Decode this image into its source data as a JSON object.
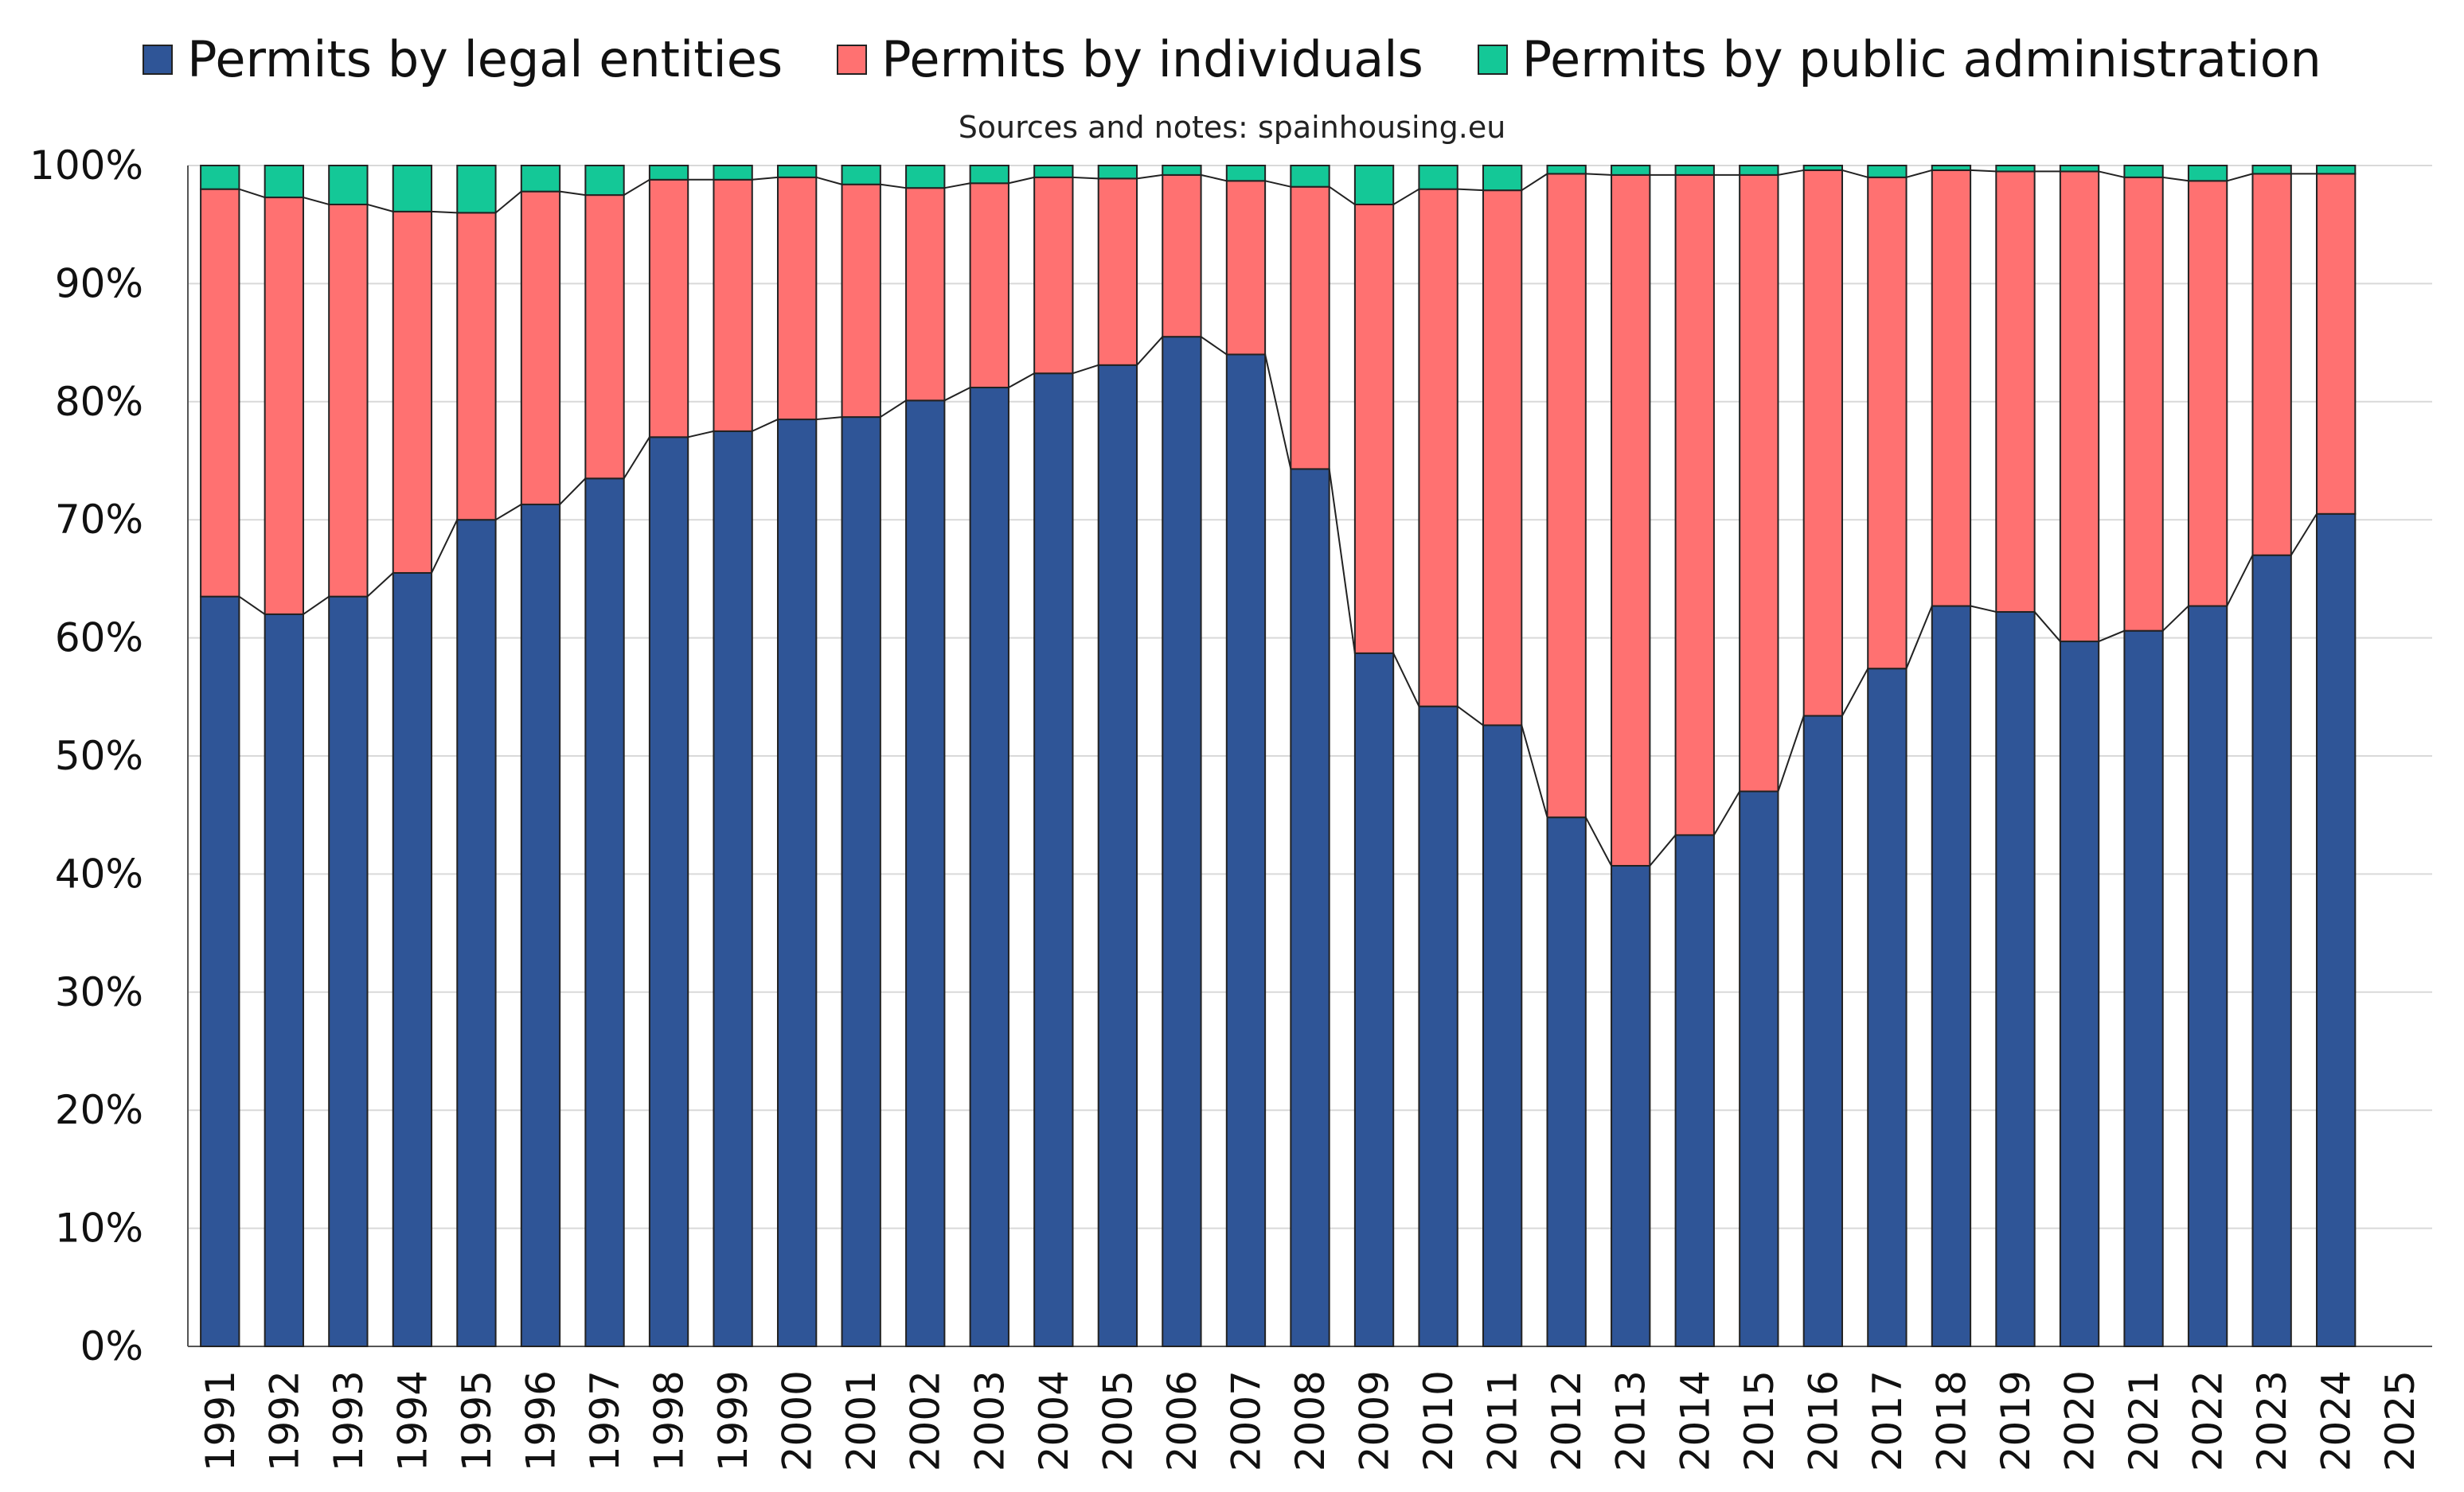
{
  "subtitle": "Sources and notes: spainhousing.eu",
  "legend": [
    {
      "label": "Permits by legal entities",
      "color": "#2F5597"
    },
    {
      "label": "Permits by individuals",
      "color": "#FF7171"
    },
    {
      "label": "Permits by public administration",
      "color": "#14C897"
    }
  ],
  "chart_data": {
    "type": "bar",
    "stacked": true,
    "categories": [
      "1991",
      "1992",
      "1993",
      "1994",
      "1995",
      "1996",
      "1997",
      "1998",
      "1999",
      "2000",
      "2001",
      "2002",
      "2003",
      "2004",
      "2005",
      "2006",
      "2007",
      "2008",
      "2009",
      "2010",
      "2011",
      "2012",
      "2013",
      "2014",
      "2015",
      "2016",
      "2017",
      "2018",
      "2019",
      "2020",
      "2021",
      "2022",
      "2023",
      "2024",
      "2025"
    ],
    "series": [
      {
        "name": "Permits by legal entities",
        "color": "#2F5597",
        "values": [
          63.5,
          62.0,
          63.5,
          65.5,
          70.0,
          71.3,
          73.5,
          77.0,
          77.5,
          78.5,
          78.7,
          80.1,
          81.2,
          82.4,
          83.1,
          85.5,
          84.0,
          74.3,
          58.7,
          54.2,
          52.6,
          44.8,
          40.7,
          43.3,
          47.0,
          53.4,
          57.4,
          62.7,
          62.2,
          59.7,
          60.6,
          62.7,
          67.0,
          70.5,
          null
        ]
      },
      {
        "name": "Permits by individuals",
        "color": "#FF7171",
        "values": [
          34.5,
          35.3,
          33.2,
          30.6,
          26.0,
          26.5,
          24.0,
          21.8,
          21.3,
          20.5,
          19.7,
          18.0,
          17.3,
          16.6,
          15.8,
          13.7,
          14.7,
          23.9,
          38.0,
          43.8,
          45.3,
          54.5,
          58.5,
          55.9,
          52.2,
          46.2,
          41.6,
          36.9,
          37.3,
          39.8,
          38.4,
          36.0,
          32.3,
          28.8,
          null
        ]
      },
      {
        "name": "Permits by public administration",
        "color": "#14C897",
        "values": [
          2.0,
          2.7,
          3.3,
          3.9,
          4.0,
          2.2,
          2.5,
          1.2,
          1.2,
          1.0,
          1.6,
          1.9,
          1.5,
          1.0,
          1.1,
          0.8,
          1.3,
          1.8,
          3.3,
          2.0,
          2.1,
          0.7,
          0.8,
          0.8,
          0.8,
          0.4,
          1.0,
          0.4,
          0.5,
          0.5,
          1.0,
          1.3,
          0.7,
          0.7,
          null
        ]
      }
    ],
    "ylim": [
      0,
      100
    ],
    "yticks": [
      "0%",
      "10%",
      "20%",
      "30%",
      "40%",
      "50%",
      "60%",
      "70%",
      "80%",
      "90%",
      "100%"
    ],
    "grid": true,
    "legend_position": "top"
  }
}
